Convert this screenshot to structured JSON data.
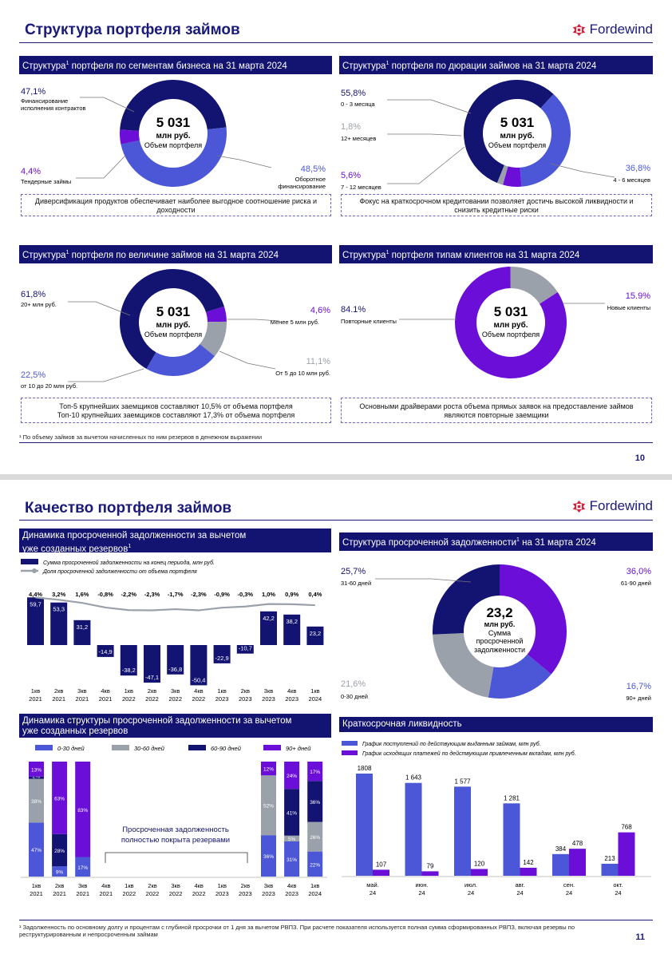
{
  "brand": "Fordewind",
  "colors": {
    "navy": "#131372",
    "blue": "#4b57d6",
    "purple": "#6a0ed8",
    "grey": "#9aa1aa"
  },
  "page10": {
    "title": "Структура портфеля займов",
    "page_number": "10",
    "footnote": "¹ По объему займов за вычетом начисленных по ним резервов в денежном выражении",
    "center": {
      "value": "5 031",
      "unit": "млн руб.",
      "caption": "Объем портфеля"
    },
    "segments": {
      "header_a": "Структура",
      "header_b": " портфеля по сегментам бизнеса на 31 марта 2024",
      "slices": [
        {
          "pct": "47,1%",
          "label1": "Финансирование",
          "label2": "исполнения контрактов"
        },
        {
          "pct": "48,5%",
          "label1": "Оборотное",
          "label2": "финансирование"
        },
        {
          "pct": "4,4%",
          "label1": "Тендерные займы",
          "label2": ""
        }
      ],
      "values": [
        47.1,
        48.5,
        4.4
      ],
      "note": "Диверсификация продуктов обеспечивает наиболее выгодное соотношение риска и доходности"
    },
    "duration": {
      "header_a": "Структура",
      "header_b": " портфеля по дюрации займов на 31 марта 2024",
      "slices": [
        {
          "pct": "55,8%",
          "label": "0 - 3 месяца"
        },
        {
          "pct": "36,8%",
          "label": "4 - 6 месяцев"
        },
        {
          "pct": "5,6%",
          "label": "7 - 12 месяцев"
        },
        {
          "pct": "1,8%",
          "label": "12+ месяцев"
        }
      ],
      "values": [
        55.8,
        36.8,
        5.6,
        1.8
      ],
      "note": "Фокус на краткосрочном кредитовании позволяет достичь высокой ликвидности и снизить кредитные риски"
    },
    "size": {
      "header_a": "Структура",
      "header_b": " портфеля по величине займов на 31 марта 2024",
      "slices": [
        {
          "pct": "61,8%",
          "label": "20+ млн руб."
        },
        {
          "pct": "4,6%",
          "label": "Менее 5 млн руб."
        },
        {
          "pct": "11,1%",
          "label": "От 5 до 10 млн руб."
        },
        {
          "pct": "22,5%",
          "label": "от 10 до 20 млн руб."
        }
      ],
      "values": [
        61.8,
        4.6,
        11.1,
        22.5
      ],
      "note1": "Топ-5 крупнейших заемщиков составляют 10,5% от объема портфеля",
      "note2": "Топ-10 крупнейших заемщиков составляют 17,3% от объема портфеля"
    },
    "clients": {
      "header_a": "Структура",
      "header_b": " портфеля типам клиентов на 31 марта 2024",
      "slices": [
        {
          "pct": "84.1%",
          "label": "Повторные клиенты"
        },
        {
          "pct": "15.9%",
          "label": "Новые клиенты"
        }
      ],
      "values": [
        84.1,
        15.9
      ],
      "note": "Основными драйверами роста объема прямых заявок на предоставление займов являются повторные заемщики"
    }
  },
  "page11": {
    "title": "Качество портфеля займов",
    "page_number": "11",
    "footnote": "¹ Задолженность по основному долгу и процентам с глубиной просрочки от 1 дня за вычетом РВПЗ. При расчете показателя используется полная сумма сформированных РВПЗ, включая резервы по реструктурированным и непросроченным займам",
    "dynamics": {
      "header1": "Динамика просроченной задолженности за вычетом",
      "header2": "уже созданных резервов",
      "legend_bar": "Сумма просроченной задолженности на конец периода, млн руб.",
      "legend_line": "Доля просроченной задолженности от объема портфеля"
    },
    "overdue_structure": {
      "header_a": "Структура просроченной задолженности",
      "header_b": " на 31 марта 2024",
      "center": {
        "value": "23,2",
        "unit": "млн руб.",
        "caption1": "Сумма",
        "caption2": "просроченной",
        "caption3": "задолженности"
      },
      "slices": [
        {
          "pct": "25,7%",
          "label": "31-60 дней"
        },
        {
          "pct": "36,0%",
          "label": "61-90 дней"
        },
        {
          "pct": "16,7%",
          "label": "90+ дней"
        },
        {
          "pct": "21,6%",
          "label": "0-30 дней"
        }
      ],
      "values": [
        36.0,
        16.7,
        21.6,
        25.7
      ]
    },
    "structure_dynamics": {
      "header1": "Динамика структуры просроченной задолженности за вычетом",
      "header2": "уже созданных резервов",
      "legend": [
        "0-30 дней",
        "30-60 дней",
        "60-90 дней",
        "90+ дней"
      ],
      "covered1": "Просроченная задолженность",
      "covered2": "полностью покрыта резервами"
    },
    "liquidity": {
      "header": "Краткосрочная ликвидность",
      "legend_in": "График поступлений по действующим выданным займам, млн руб.",
      "legend_out": "График исходящих платежей по действующим привлеченным вкладам, млн руб."
    }
  },
  "chart_data": [
    {
      "type": "bar",
      "categories": [
        "1кв 2021",
        "2кв 2021",
        "3кв 2021",
        "4кв 2021",
        "1кв 2022",
        "2кв 2022",
        "3кв 2022",
        "4кв 2022",
        "1кв 2023",
        "2кв 2023",
        "3кв 2023",
        "4кв 2023",
        "1кв 2024"
      ],
      "bar_values": [
        59.7,
        53.3,
        31.2,
        -14.9,
        -38.2,
        -47.1,
        -36.8,
        -50.4,
        -22.9,
        -10.7,
        42.2,
        38.2,
        23.2
      ],
      "bar_labels": [
        "59,7",
        "53,3",
        "31,2",
        "-14,9",
        "-38,2",
        "-47,1",
        "-36,8",
        "-50,4",
        "-22,9",
        "-10,7",
        "42,2",
        "38,2",
        "23,2"
      ],
      "line_values": [
        4.4,
        3.2,
        1.6,
        -0.8,
        -2.2,
        -2.3,
        -1.7,
        -2.3,
        -0.9,
        -0.3,
        1.0,
        0.9,
        0.4
      ],
      "line_labels": [
        "4,4%",
        "3,2%",
        "1,6%",
        "-0,8%",
        "-2,2%",
        "-2,3%",
        "-1,7%",
        "-2,3%",
        "-0,9%",
        "-0,3%",
        "1,0%",
        "0,9%",
        "0,4%"
      ],
      "cat_top": [
        "1кв",
        "2кв",
        "3кв",
        "4кв",
        "1кв",
        "2кв",
        "3кв",
        "4кв",
        "1кв",
        "2кв",
        "3кв",
        "4кв",
        "1кв"
      ],
      "cat_bottom": [
        "2021",
        "2021",
        "2021",
        "2021",
        "2022",
        "2022",
        "2022",
        "2022",
        "2023",
        "2023",
        "2023",
        "2023",
        "2024"
      ]
    },
    {
      "type": "bar",
      "stacked": true,
      "cat_top": [
        "1кв",
        "2кв",
        "3кв",
        "4кв",
        "1кв",
        "2кв",
        "3кв",
        "4кв",
        "1кв",
        "2кв",
        "3кв",
        "4кв",
        "1кв"
      ],
      "cat_bottom": [
        "2021",
        "2021",
        "2021",
        "2021",
        "2022",
        "2022",
        "2022",
        "2022",
        "2023",
        "2023",
        "2023",
        "2023",
        "2024"
      ],
      "series": [
        {
          "name": "0-30 дней",
          "values": [
            47,
            9,
            17,
            0,
            0,
            0,
            0,
            0,
            0,
            0,
            36,
            31,
            22
          ],
          "labels": [
            "47%",
            "9%",
            "17%",
            "",
            "",
            "",
            "",
            "",
            "",
            "",
            "36%",
            "31%",
            "22%"
          ]
        },
        {
          "name": "30-60 дней",
          "values": [
            38,
            0,
            0,
            0,
            0,
            0,
            0,
            0,
            0,
            0,
            52,
            5,
            26
          ],
          "labels": [
            "38%",
            "",
            "",
            "",
            "",
            "",
            "",
            "",
            "",
            "",
            "52%",
            "5%",
            "26%"
          ]
        },
        {
          "name": "60-90 дней",
          "values": [
            2,
            28,
            0,
            0,
            0,
            0,
            0,
            0,
            0,
            0,
            0,
            41,
            36
          ],
          "labels": [
            "2%",
            "28%",
            "",
            "",
            "",
            "",
            "",
            "",
            "",
            "",
            "",
            "41%",
            "36%"
          ]
        },
        {
          "name": "90+ дней",
          "values": [
            13,
            63,
            83,
            0,
            0,
            0,
            0,
            0,
            0,
            0,
            12,
            24,
            17
          ],
          "labels": [
            "13%",
            "63%",
            "83%",
            "",
            "",
            "",
            "",
            "",
            "",
            "",
            "12%",
            "24%",
            "17%"
          ]
        }
      ]
    },
    {
      "type": "bar",
      "categories": [
        "май. 24",
        "июн. 24",
        "июл. 24",
        "авг. 24",
        "сен. 24",
        "окт. 24"
      ],
      "cat_top": [
        "май.",
        "июн.",
        "июл.",
        "авг.",
        "сен.",
        "окт."
      ],
      "cat_bottom": [
        "24",
        "24",
        "24",
        "24",
        "24",
        "24"
      ],
      "series": [
        {
          "name": "График поступлений по действующим выданным займам, млн руб.",
          "values": [
            1808,
            1643,
            1577,
            1281,
            384,
            213
          ],
          "labels": [
            "1808",
            "1 643",
            "1 577",
            "1 281",
            "384",
            "213"
          ]
        },
        {
          "name": "График исходящих платежей по действующим привлеченным вкладам, млн руб.",
          "values": [
            107,
            79,
            120,
            142,
            478,
            768
          ],
          "labels": [
            "107",
            "79",
            "120",
            "142",
            "478",
            "768"
          ]
        }
      ]
    }
  ]
}
